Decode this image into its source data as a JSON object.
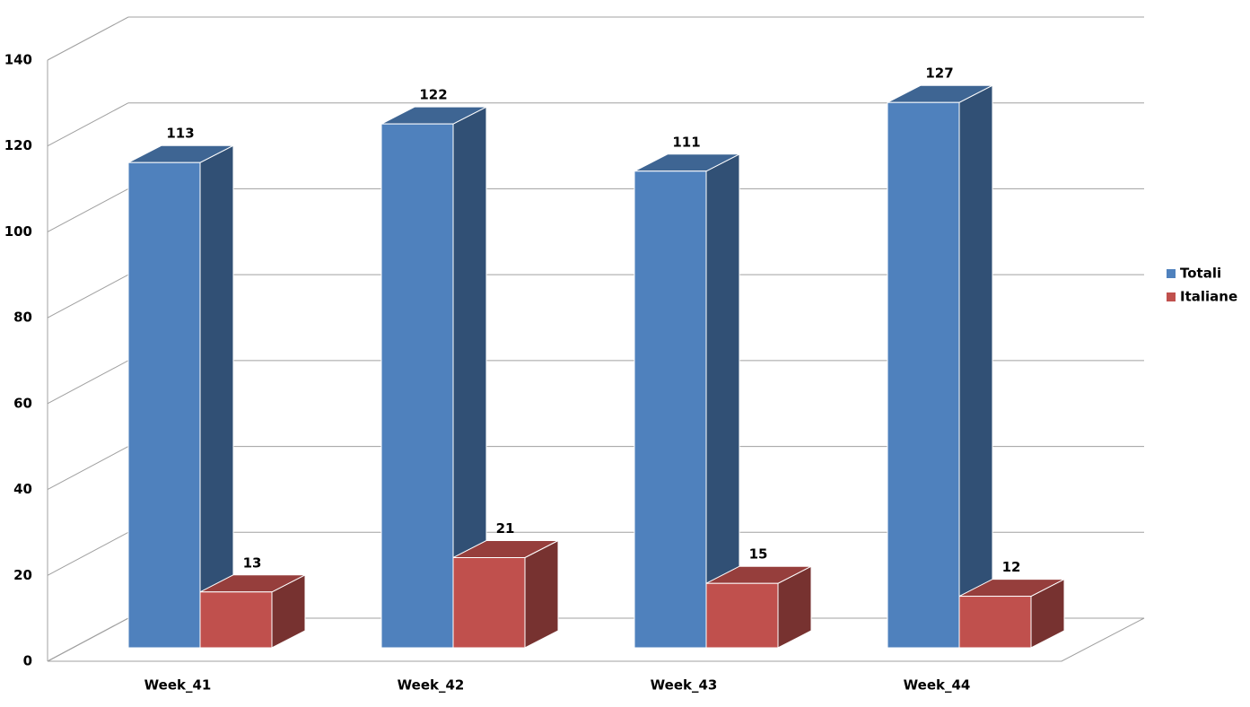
{
  "chart_data": {
    "type": "bar3d",
    "categories": [
      "Week_41",
      "Week_42",
      "Week_43",
      "Week_44"
    ],
    "series": [
      {
        "name": "Totali",
        "color": "#4f81bd",
        "values": [
          113,
          122,
          111,
          127
        ]
      },
      {
        "name": "Italiane",
        "color": "#c0504d",
        "values": [
          13,
          21,
          15,
          12
        ]
      }
    ],
    "ylim": [
      0,
      140
    ],
    "yticks": [
      0,
      20,
      40,
      60,
      80,
      100,
      120,
      140
    ],
    "grid": true,
    "legend": "right"
  }
}
